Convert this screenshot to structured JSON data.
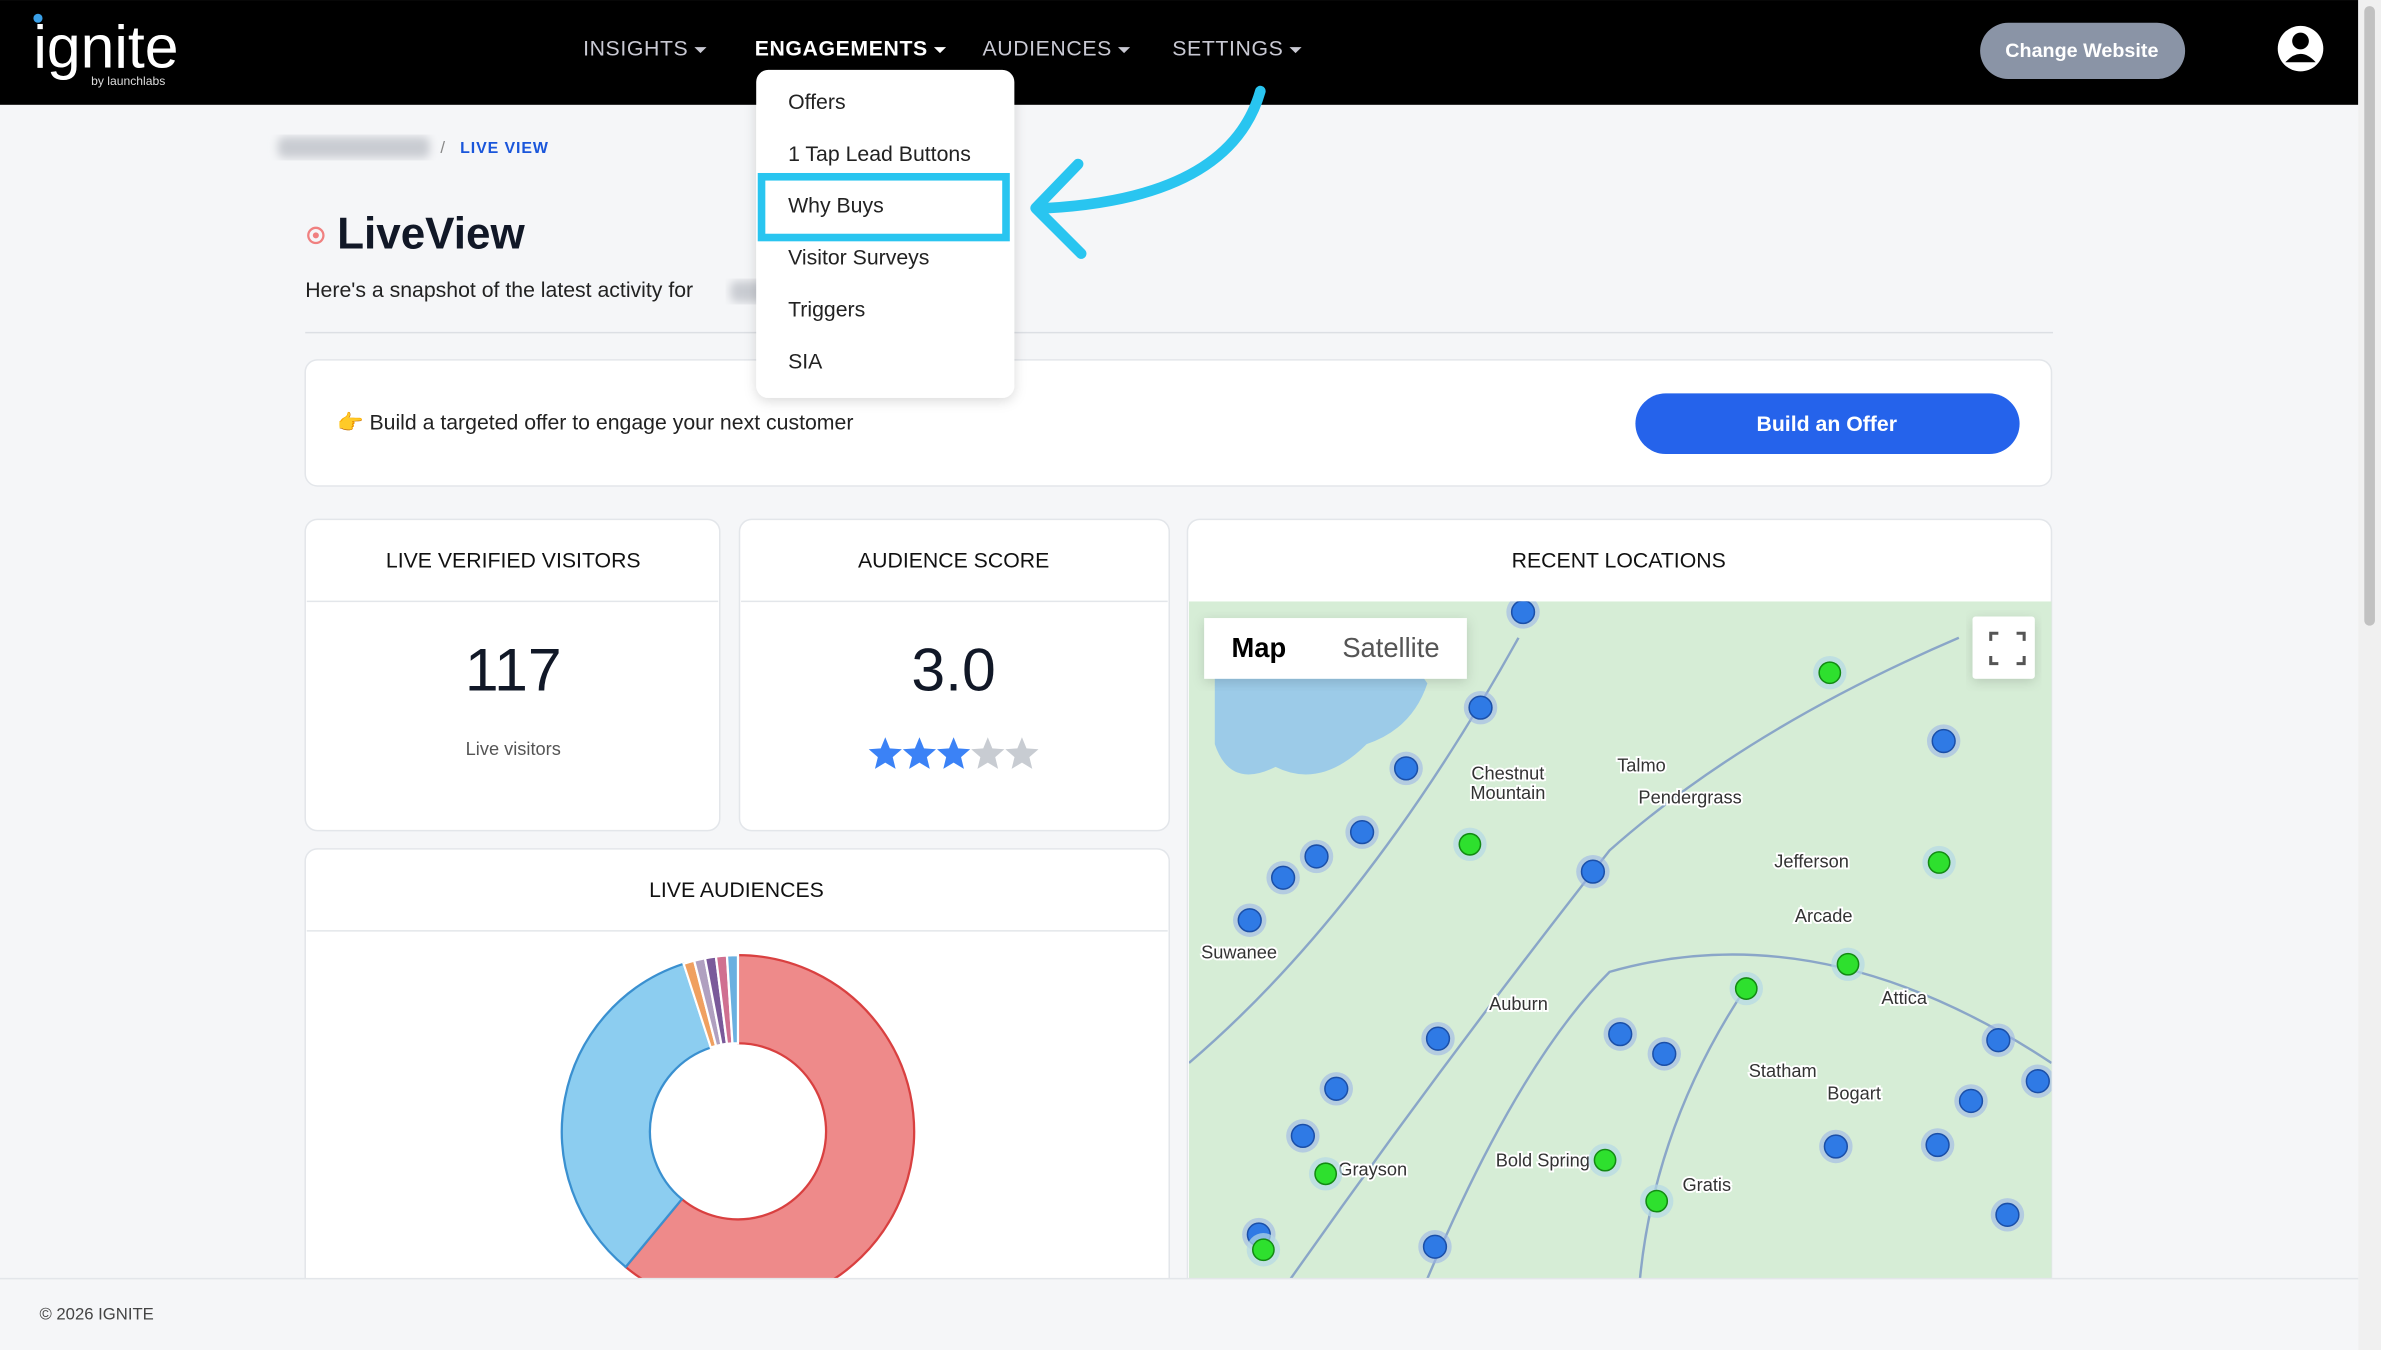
{
  "nav": {
    "logo": "ignite",
    "logo_sub": "by launchlabs",
    "menu": [
      "INSIGHTS",
      "ENGAGEMENTS",
      "AUDIENCES",
      "SETTINGS"
    ],
    "button": "Change Website"
  },
  "dropdown": {
    "items": [
      "Offers",
      "1 Tap Lead Buttons",
      "Why Buys",
      "Visitor Surveys",
      "Triggers",
      "SIA"
    ],
    "highlighted": 2
  },
  "breadcrumb": "LIVE VIEW",
  "header": {
    "title": "LiveView",
    "subtitle": "Here's a snapshot of the latest activity for"
  },
  "banner": {
    "text": "👉 Build a targeted offer to engage your next customer",
    "button": "Build an Offer"
  },
  "cards": {
    "visitors": {
      "title": "LIVE VERIFIED VISITORS",
      "value": 117,
      "caption": "Live visitors"
    },
    "score": {
      "title": "AUDIENCE SCORE",
      "label": "3.0",
      "rating": 3,
      "max": 5
    }
  },
  "audiences": {
    "title": "LIVE AUDIENCES",
    "type": "donut",
    "values": [
      61,
      34,
      1,
      1,
      1,
      1,
      1
    ],
    "colors": [
      "#ee8a8a",
      "#8ccdf0",
      "#f0a060",
      "#b0a0c0",
      "#7a5a9a",
      "#d07090",
      "#6ab0e0"
    ]
  },
  "map": {
    "title": "RECENT LOCATIONS",
    "buttons": [
      "Map",
      "Satellite"
    ],
    "places": [
      "Talmo",
      "Pendergrass",
      "Chestnut",
      "Mountain",
      "Jefferson",
      "Arcade",
      "Suwanee",
      "Auburn",
      "Attica",
      "Statham",
      "Bogart",
      "Grayson",
      "Gratis",
      "Bold Spring"
    ]
  },
  "footer": "© 2026 IGNITE"
}
